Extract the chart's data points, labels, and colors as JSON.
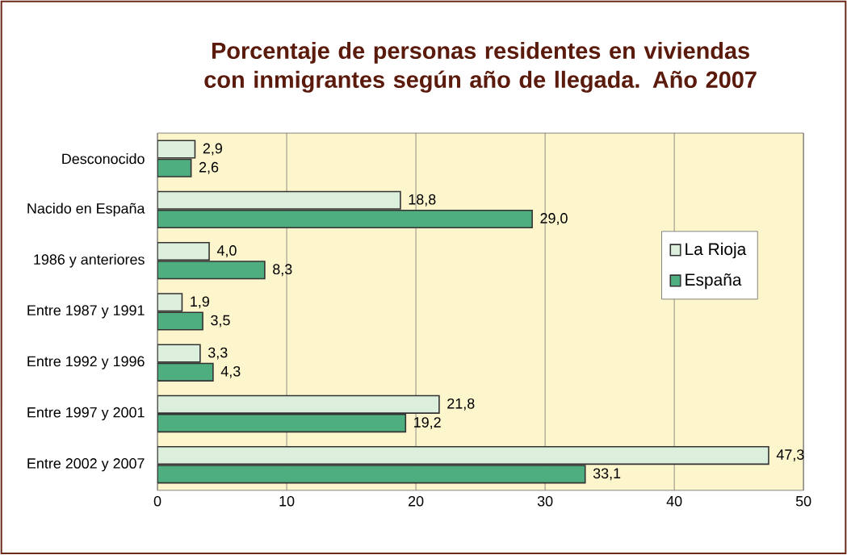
{
  "chart_data": {
    "type": "bar",
    "orientation": "horizontal",
    "title": "Porcentaje de personas residentes en viviendas con inmigrantes según año de llegada. Año 2007",
    "categories": [
      "Desconocido",
      "Nacido en España",
      "1986 y anteriores",
      "Entre 1987 y 1991",
      "Entre 1992 y 1996",
      "Entre 1997 y 2001",
      "Entre 2002 y 2007"
    ],
    "series": [
      {
        "name": "La Rioja",
        "color": "#dcefdc",
        "values": [
          2.9,
          18.8,
          4.0,
          1.9,
          3.3,
          21.8,
          47.3
        ],
        "value_labels": [
          "2,9",
          "18,8",
          "4,0",
          "1,9",
          "3,3",
          "21,8",
          "47,3"
        ]
      },
      {
        "name": "España",
        "color": "#4fae80",
        "values": [
          2.6,
          29.0,
          8.3,
          3.5,
          4.3,
          19.2,
          33.1
        ],
        "value_labels": [
          "2,6",
          "29,0",
          "8,3",
          "3,5",
          "4,3",
          "19,2",
          "33,1"
        ]
      }
    ],
    "xlim": [
      0,
      50
    ],
    "xticks": [
      0,
      10,
      20,
      30,
      40,
      50
    ],
    "grid": "x",
    "legend": "right"
  }
}
